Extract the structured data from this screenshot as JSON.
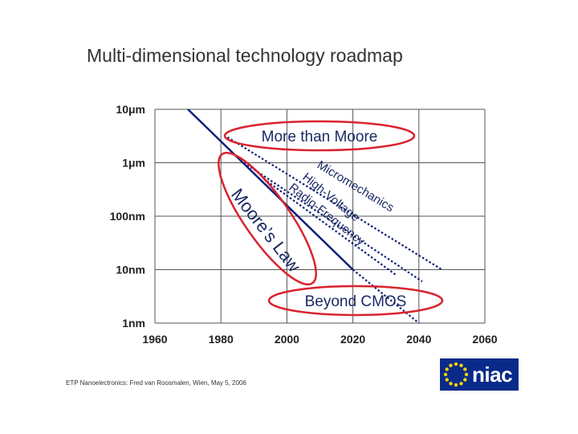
{
  "title": "Multi-dimensional technology roadmap",
  "footer": "ETP Nanoelectronics: Fred van Roosmalen, Wien, May 5, 2006",
  "logo": {
    "text": "niac",
    "colors": {
      "background": "#0a2a8a",
      "stars": "#f5d400"
    }
  },
  "colors": {
    "ellipse": "#d9232d",
    "series_line": "#0d1f7a",
    "grid": "#555555"
  },
  "chart_data": {
    "type": "line",
    "title": "Multi-dimensional technology roadmap",
    "xlabel": "",
    "ylabel": "",
    "x_ticks": [
      "1960",
      "1980",
      "2000",
      "2020",
      "2040",
      "2060"
    ],
    "xlim": [
      1960,
      2060
    ],
    "y_ticks": [
      "10μm",
      "1μm",
      "100nm",
      "10nm",
      "1nm"
    ],
    "y_scale": "log",
    "ylim_nm": [
      1,
      10000
    ],
    "grid": true,
    "series": [
      {
        "name": "Moore’s Law",
        "style": "solid",
        "x": [
          1970,
          2020
        ],
        "y_nm": [
          10000,
          10
        ]
      },
      {
        "name": "",
        "style": "dotted",
        "x": [
          2020,
          2040
        ],
        "y_nm": [
          10,
          1
        ]
      },
      {
        "name": "Micromechanics",
        "style": "dotted",
        "x": [
          1982,
          2047
        ],
        "y_nm": [
          3000,
          10
        ]
      },
      {
        "name": "High-Voltage",
        "style": "dotted",
        "x": [
          1987,
          2041
        ],
        "y_nm": [
          1000,
          6
        ]
      },
      {
        "name": "Radio-Frequency",
        "style": "dotted",
        "x": [
          1993,
          2033
        ],
        "y_nm": [
          500,
          8
        ]
      }
    ],
    "annotations": {
      "more_than_moore": "More than Moore",
      "moores_law": "Moore’s Law",
      "beyond_cmos": "Beyond CMOS",
      "micromechanics": "Micromechanics",
      "high_voltage": "High-Voltage",
      "radio_frequency": "Radio-Frequency"
    }
  }
}
